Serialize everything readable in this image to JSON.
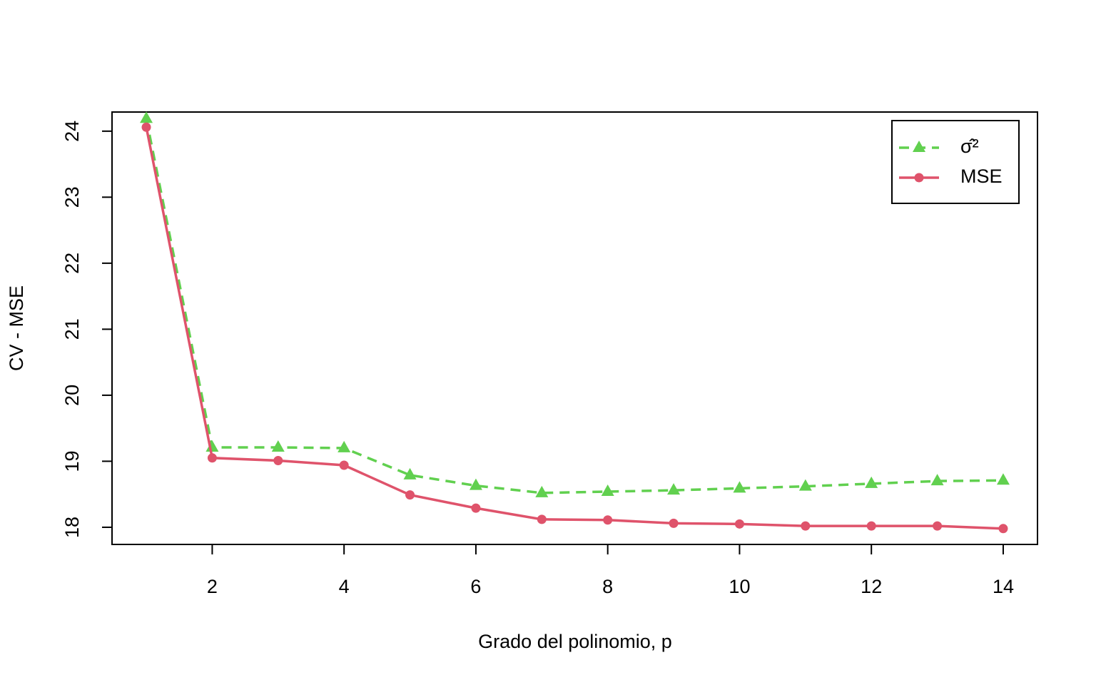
{
  "chart_data": {
    "type": "line",
    "xlabel": "Grado del polinomio, p",
    "ylabel": "CV - MSE",
    "x": [
      1,
      2,
      3,
      4,
      5,
      6,
      7,
      8,
      9,
      10,
      11,
      12,
      13,
      14
    ],
    "series": [
      {
        "name": "σ̂²",
        "color": "#61D04F",
        "dash": true,
        "marker": "triangle",
        "values": [
          24.19,
          19.21,
          19.21,
          19.2,
          18.79,
          18.63,
          18.52,
          18.54,
          18.56,
          18.59,
          18.62,
          18.66,
          18.7,
          18.71
        ]
      },
      {
        "name": "MSE",
        "color": "#DF536B",
        "dash": false,
        "marker": "circle",
        "values": [
          24.06,
          19.05,
          19.01,
          18.94,
          18.49,
          18.29,
          18.12,
          18.11,
          18.06,
          18.05,
          18.02,
          18.02,
          18.02,
          17.98
        ]
      }
    ],
    "xlim": [
      0.48,
      14.52
    ],
    "xticks": [
      2,
      4,
      6,
      8,
      10,
      12,
      14
    ],
    "ylim": [
      17.74,
      24.29
    ],
    "yticks": [
      18,
      19,
      20,
      21,
      22,
      23,
      24
    ],
    "legend": "top-right"
  }
}
